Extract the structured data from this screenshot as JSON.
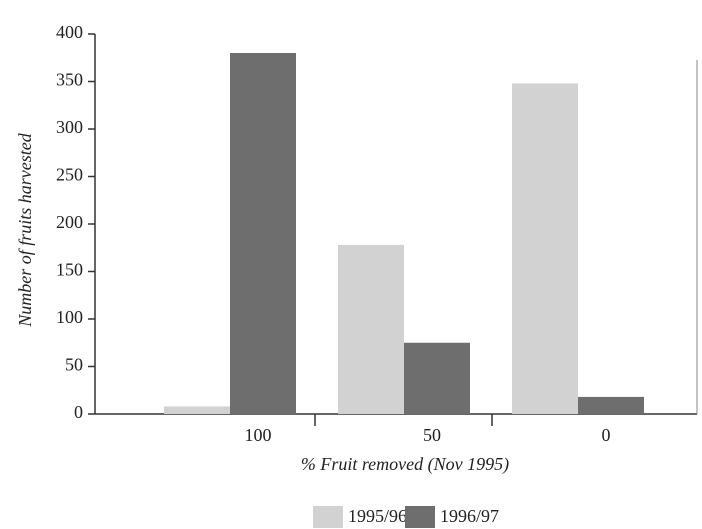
{
  "chart_data": {
    "type": "bar",
    "xlabel": "% Fruit removed (Nov 1995)",
    "ylabel": "Number of fruits harvested",
    "categories": [
      "100",
      "50",
      "0"
    ],
    "series": [
      {
        "name": "1995/96",
        "color": "#d2d2d2",
        "values": [
          8,
          178,
          348
        ]
      },
      {
        "name": "1996/97",
        "color": "#6e6e6e",
        "values": [
          380,
          75,
          18
        ]
      }
    ],
    "ylim": [
      0,
      400
    ],
    "yticks": [
      0,
      50,
      100,
      150,
      200,
      250,
      300,
      350,
      400
    ],
    "legend": "bottom"
  }
}
